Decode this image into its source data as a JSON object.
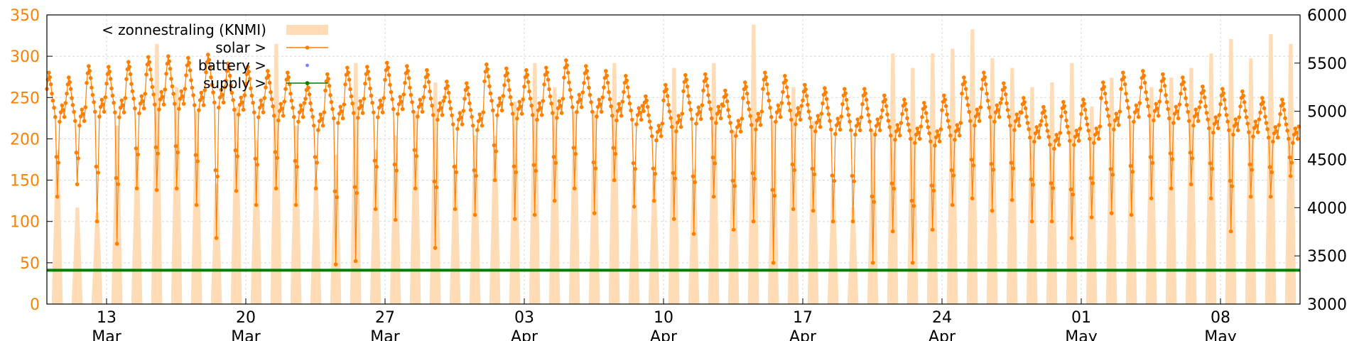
{
  "chart_data": {
    "type": "line",
    "title": "",
    "xlabel": "",
    "ylabel": "",
    "y_left": {
      "range": [
        0,
        350
      ],
      "ticks": [
        "0",
        "50",
        "100",
        "150",
        "200",
        "250",
        "300",
        "350"
      ],
      "color": "#ff7f00"
    },
    "y_right": {
      "range": [
        3000,
        6000
      ],
      "ticks": [
        "3000",
        "3500",
        "4000",
        "4500",
        "5000",
        "5500",
        "6000"
      ],
      "color": "#000000"
    },
    "x_axis": {
      "range": [
        "2024-03-10",
        "2024-05-12"
      ],
      "ticks": [
        {
          "day": "13",
          "month": "Mar",
          "date": "2024-03-13"
        },
        {
          "day": "20",
          "month": "Mar",
          "date": "2024-03-20"
        },
        {
          "day": "27",
          "month": "Mar",
          "date": "2024-03-27"
        },
        {
          "day": "03",
          "month": "Apr",
          "date": "2024-04-03"
        },
        {
          "day": "10",
          "month": "Apr",
          "date": "2024-04-10"
        },
        {
          "day": "17",
          "month": "Apr",
          "date": "2024-04-17"
        },
        {
          "day": "24",
          "month": "Apr",
          "date": "2024-04-24"
        },
        {
          "day": "01",
          "month": "May",
          "date": "2024-05-01"
        },
        {
          "day": "08",
          "month": "May",
          "date": "2024-05-08"
        }
      ]
    },
    "grid": true,
    "legend_position": "top-left",
    "series": [
      {
        "name": "< zonnestraling (KNMI)",
        "axis": "right",
        "style": "filled",
        "color": "#ffdcb6",
        "daily_peak": [
          4600,
          4000,
          3950,
          4850,
          4600,
          5700,
          5250,
          5000,
          4250,
          5050,
          4700,
          5700,
          4850,
          4300,
          4550,
          5500,
          4600,
          4750,
          5000,
          5300,
          4450,
          4750,
          4750,
          5100,
          5500,
          5250,
          5000,
          5000,
          5500,
          4400,
          4350,
          5450,
          4400,
          5500,
          4800,
          5900,
          4900,
          5250,
          4900,
          4250,
          4000,
          4800,
          5600,
          5450,
          5600,
          5650,
          5850,
          5550,
          5450,
          5250,
          5300,
          5500,
          5050,
          5350,
          4900,
          5250,
          5350,
          5450,
          5600,
          5750,
          5550,
          5800,
          5700
        ]
      },
      {
        "name": "solar >",
        "axis": "left",
        "style": "line-points",
        "color": "#ff7f00",
        "daily_peak": [
          283,
          277,
          291,
          290,
          296,
          302,
          303,
          301,
          305,
          294,
          290,
          285,
          283,
          270,
          281,
          289,
          290,
          295,
          291,
          286,
          272,
          270,
          293,
          288,
          286,
          289,
          298,
          291,
          285,
          279,
          254,
          268,
          280,
          281,
          261,
          271,
          283,
          279,
          268,
          264,
          263,
          263,
          255,
          250,
          246,
          255,
          277,
          283,
          270,
          252,
          241,
          247,
          250,
          271,
          283,
          285,
          281,
          277,
          266,
          263,
          260,
          252,
          250
        ],
        "daily_min": [
          130,
          145,
          100,
          73,
          140,
          138,
          140,
          120,
          80,
          137,
          120,
          140,
          120,
          140,
          48,
          52,
          115,
          102,
          140,
          68,
          115,
          108,
          150,
          103,
          108,
          125,
          140,
          110,
          150,
          118,
          125,
          103,
          85,
          130,
          90,
          100,
          50,
          115,
          113,
          100,
          100,
          50,
          88,
          50,
          90,
          120,
          128,
          113,
          126,
          100,
          100,
          80,
          105,
          110,
          108,
          128,
          140,
          145,
          128,
          88,
          130,
          130,
          155
        ]
      },
      {
        "name": "battery >",
        "axis": "left",
        "style": "points",
        "color": "#8080ff",
        "values": []
      },
      {
        "name": "supply >",
        "axis": "left",
        "style": "line-points",
        "color": "#007f00",
        "level": 41
      }
    ]
  }
}
